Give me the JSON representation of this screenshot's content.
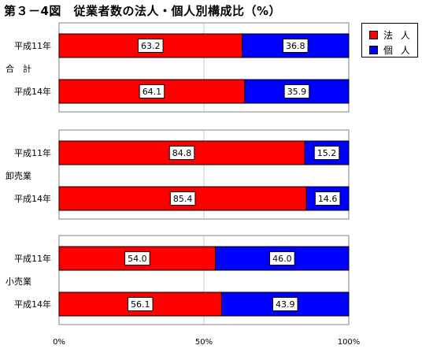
{
  "title": "第３－4図　従業者数の法人・個人別構成比（%）",
  "legend": {
    "corporate": {
      "label": "法 人",
      "color": "#ff0000"
    },
    "individual": {
      "label": "個 人",
      "color": "#0000ff"
    }
  },
  "chart_data": {
    "type": "bar",
    "orientation": "horizontal",
    "stacked": true,
    "title": "第３－4図　従業者数の法人・個人別構成比（%）",
    "xlim": [
      0,
      100
    ],
    "x_tick_labels": [
      "0%",
      "50%",
      "100%"
    ],
    "legend_position": "top-right",
    "grid": "vertical at 50%",
    "series_names": [
      "法 人",
      "個 人"
    ],
    "groups": [
      {
        "label": "合　計",
        "rows": [
          {
            "label": "平成11年",
            "corporate": 63.2,
            "individual": 36.8,
            "corporate_text": "63.2",
            "individual_text": "36.8"
          },
          {
            "label": "平成14年",
            "corporate": 64.1,
            "individual": 35.9,
            "corporate_text": "64.1",
            "individual_text": "35.9"
          }
        ]
      },
      {
        "label": "卸売業",
        "rows": [
          {
            "label": "平成11年",
            "corporate": 84.8,
            "individual": 15.2,
            "corporate_text": "84.8",
            "individual_text": "15.2"
          },
          {
            "label": "平成14年",
            "corporate": 85.4,
            "individual": 14.6,
            "corporate_text": "85.4",
            "individual_text": "14.6"
          }
        ]
      },
      {
        "label": "小売業",
        "rows": [
          {
            "label": "平成11年",
            "corporate": 54.0,
            "individual": 46.0,
            "corporate_text": "54.0",
            "individual_text": "46.0"
          },
          {
            "label": "平成14年",
            "corporate": 56.1,
            "individual": 43.9,
            "corporate_text": "56.1",
            "individual_text": "43.9"
          }
        ]
      }
    ]
  }
}
